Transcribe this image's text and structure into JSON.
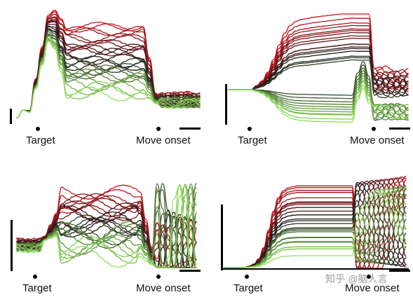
{
  "figure": {
    "watermark": "知乎 @脑人言",
    "event_labels": {
      "target": "Target",
      "move_onset": "Move onset"
    }
  },
  "colors": {
    "red": "#c8141c",
    "dark": "#1b1b1b",
    "green": "#8fe05a",
    "axis": "#000000"
  },
  "chart_data": [
    {
      "type": "line",
      "panel": "top-left",
      "xlabel": "",
      "ylabel": "",
      "events": [
        "Target",
        "Move onset"
      ],
      "n_traces": 28,
      "grid": false,
      "legend": "none",
      "description_series": "condition-colored traces ranging from red through black to green",
      "series": [
        {
          "group": "red",
          "count": 9
        },
        {
          "group": "dark",
          "count": 10
        },
        {
          "group": "green",
          "count": 9
        }
      ]
    },
    {
      "type": "line",
      "panel": "top-right",
      "xlabel": "",
      "ylabel": "",
      "events": [
        "Target",
        "Move onset"
      ],
      "n_traces": 28,
      "grid": false,
      "legend": "none",
      "series": [
        {
          "group": "red",
          "count": 9
        },
        {
          "group": "dark",
          "count": 10
        },
        {
          "group": "green",
          "count": 9
        }
      ]
    },
    {
      "type": "line",
      "panel": "bottom-left",
      "xlabel": "",
      "ylabel": "",
      "events": [
        "Target",
        "Move onset"
      ],
      "n_traces": 28,
      "grid": false,
      "legend": "none",
      "series": [
        {
          "group": "red",
          "count": 9
        },
        {
          "group": "dark",
          "count": 10
        },
        {
          "group": "green",
          "count": 9
        }
      ]
    },
    {
      "type": "line",
      "panel": "bottom-right",
      "xlabel": "",
      "ylabel": "",
      "events": [
        "Target",
        "Move onset"
      ],
      "n_traces": 28,
      "grid": false,
      "legend": "none",
      "series": [
        {
          "group": "red",
          "count": 9
        },
        {
          "group": "dark",
          "count": 10
        },
        {
          "group": "green",
          "count": 9
        }
      ]
    }
  ]
}
